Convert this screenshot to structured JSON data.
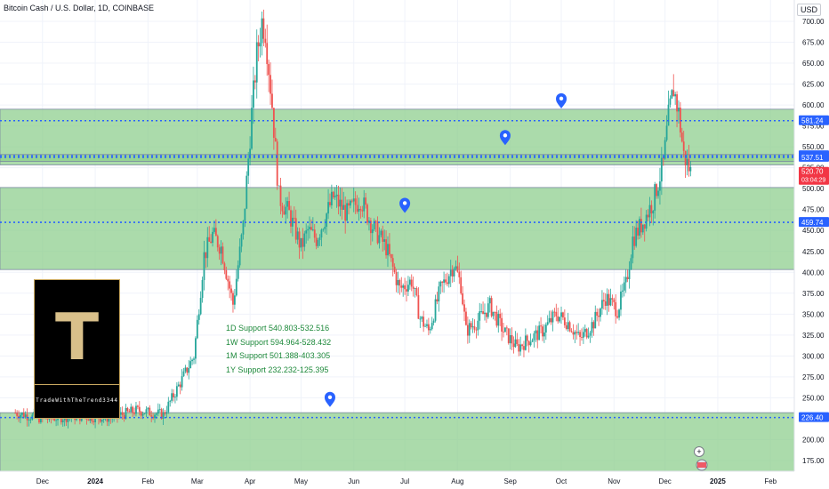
{
  "header": {
    "title": "Bitcoin Cash / U.S. Dollar, 1D, COINBASE",
    "currency": "USD"
  },
  "branding": {
    "logo_letter": "T",
    "handle": "TradeWithTheTrend3344"
  },
  "supports": [
    "1D Support 540.803-532.516",
    "1W Support 594.964-528.432",
    "1M Support 501.388-403.305",
    "1Y Support 232.232-125.395"
  ],
  "colors": {
    "up": "#26a69a",
    "down": "#ef5350",
    "zone_fill": "#8fcf8f",
    "level_line": "#2962ff",
    "marker": "#2962ff",
    "price_tag": "#f23645"
  },
  "chart_data": {
    "type": "candlestick",
    "title": "Bitcoin Cash / U.S. Dollar, 1D, COINBASE",
    "ylim": [
      160,
      715
    ],
    "y_ticks": [
      175,
      200,
      225,
      250,
      275,
      300,
      325,
      350,
      375,
      400,
      425,
      450,
      475,
      500,
      525,
      550,
      575,
      600,
      625,
      650,
      675,
      700
    ],
    "y_tick_labels": [
      "175.00",
      "200.00",
      "225.00",
      "250.00",
      "275.00",
      "300.00",
      "325.00",
      "350.00",
      "375.00",
      "400.00",
      "425.00",
      "450.00",
      "475.00",
      "500.00",
      "525.00",
      "550.00",
      "575.00",
      "600.00",
      "625.00",
      "650.00",
      "675.00",
      "700.00"
    ],
    "x_ticks": [
      "Dec",
      "2024",
      "Feb",
      "Mar",
      "Apr",
      "May",
      "Jun",
      "Jul",
      "Aug",
      "Sep",
      "Oct",
      "Nov",
      "Dec",
      "2025",
      "Feb"
    ],
    "zones": [
      {
        "name": "1W Support",
        "from": 528.432,
        "to": 594.964
      },
      {
        "name": "1D Support",
        "from": 532.516,
        "to": 540.803
      },
      {
        "name": "1M Support",
        "from": 403.305,
        "to": 501.388
      },
      {
        "name": "1Y Support",
        "from": 125.395,
        "to": 232.232
      }
    ],
    "levels": [
      {
        "value": 581.24,
        "label": "581.24"
      },
      {
        "value": 539.39,
        "label": "539.39"
      },
      {
        "value": 537.51,
        "label": "537.51"
      },
      {
        "value": 459.74,
        "label": "459.74"
      },
      {
        "value": 226.4,
        "label": "226.40"
      }
    ],
    "last_price": {
      "value": 520.7,
      "label": "520.70",
      "countdown": "03:04:29"
    },
    "anchors": [
      [
        "2023-11-15",
        232
      ],
      [
        "2023-12-01",
        225
      ],
      [
        "2023-12-20",
        228
      ],
      [
        "2024-01-10",
        226
      ],
      [
        "2024-01-25",
        235
      ],
      [
        "2024-02-10",
        230
      ],
      [
        "2024-02-20",
        268
      ],
      [
        "2024-02-28",
        300
      ],
      [
        "2024-03-05",
        420
      ],
      [
        "2024-03-10",
        445
      ],
      [
        "2024-03-15",
        430
      ],
      [
        "2024-03-22",
        362
      ],
      [
        "2024-03-28",
        455
      ],
      [
        "2024-04-02",
        590
      ],
      [
        "2024-04-05",
        660
      ],
      [
        "2024-04-08",
        700
      ],
      [
        "2024-04-10",
        690
      ],
      [
        "2024-04-14",
        600
      ],
      [
        "2024-04-18",
        490
      ],
      [
        "2024-04-24",
        470
      ],
      [
        "2024-05-01",
        430
      ],
      [
        "2024-05-05",
        450
      ],
      [
        "2024-05-10",
        440
      ],
      [
        "2024-05-20",
        490
      ],
      [
        "2024-05-28",
        470
      ],
      [
        "2024-06-05",
        488
      ],
      [
        "2024-06-12",
        455
      ],
      [
        "2024-06-20",
        430
      ],
      [
        "2024-06-28",
        380
      ],
      [
        "2024-07-05",
        390
      ],
      [
        "2024-07-10",
        345
      ],
      [
        "2024-07-15",
        330
      ],
      [
        "2024-07-22",
        380
      ],
      [
        "2024-07-30",
        410
      ],
      [
        "2024-08-03",
        385
      ],
      [
        "2024-08-06",
        330
      ],
      [
        "2024-08-12",
        340
      ],
      [
        "2024-08-20",
        360
      ],
      [
        "2024-08-28",
        330
      ],
      [
        "2024-09-05",
        310
      ],
      [
        "2024-09-12",
        320
      ],
      [
        "2024-09-20",
        330
      ],
      [
        "2024-09-28",
        350
      ],
      [
        "2024-10-05",
        340
      ],
      [
        "2024-10-12",
        320
      ],
      [
        "2024-10-20",
        340
      ],
      [
        "2024-10-27",
        370
      ],
      [
        "2024-11-03",
        355
      ],
      [
        "2024-11-08",
        385
      ],
      [
        "2024-11-12",
        440
      ],
      [
        "2024-11-18",
        460
      ],
      [
        "2024-11-24",
        485
      ],
      [
        "2024-11-30",
        530
      ],
      [
        "2024-12-03",
        585
      ],
      [
        "2024-12-06",
        620
      ],
      [
        "2024-12-09",
        590
      ],
      [
        "2024-12-12",
        540
      ],
      [
        "2024-12-16",
        520
      ]
    ]
  }
}
